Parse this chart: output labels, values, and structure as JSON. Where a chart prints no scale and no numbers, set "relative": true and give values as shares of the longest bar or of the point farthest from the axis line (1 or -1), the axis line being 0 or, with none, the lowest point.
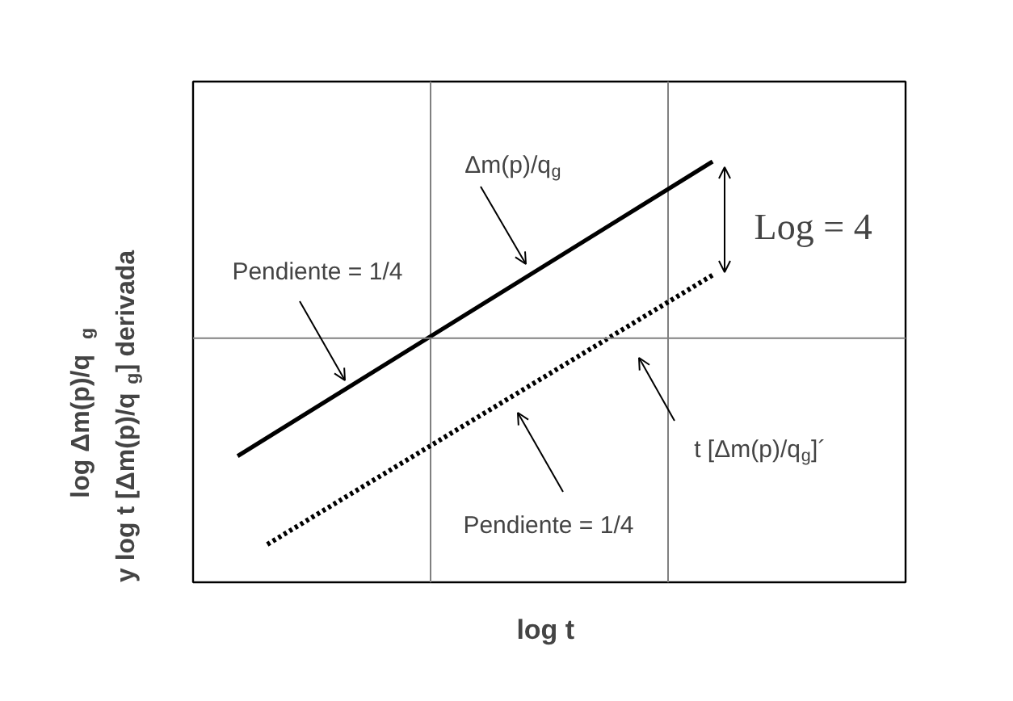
{
  "chart_data": {
    "type": "line",
    "relative": true,
    "xlabel": "log  t",
    "ylabel": "log  Δm(p)/q$_{g}$\ny log t [Δm(p)/q$_{g}$] derivada",
    "categories": [
      null,
      null,
      null,
      null,
      null,
      null,
      null,
      null,
      null,
      null,
      null,
      null,
      null,
      null,
      null,
      null,
      null,
      null,
      null,
      null,
      null,
      null,
      null,
      null
    ],
    "grid": "x",
    "series": [
      {
        "values": [
          null,
          0.3,
          null,
          null,
          null,
          null,
          null,
          null,
          null,
          null,
          null,
          null,
          null,
          null,
          null,
          null,
          null,
          1.0,
          null,
          null,
          null,
          null,
          null,
          null
        ],
        "color": "#000000",
        "line_style": "solid"
      },
      {
        "values": [
          null,
          null,
          0.09,
          null,
          null,
          null,
          null,
          null,
          null,
          null,
          null,
          null,
          null,
          null,
          null,
          null,
          null,
          0.73,
          null,
          null,
          null,
          null,
          null,
          null
        ],
        "color": "#000000",
        "line_style": "dotted"
      }
    ],
    "ref_lines": [
      {
        "axis": "y",
        "value": 0.58,
        "color": "#808080"
      }
    ],
    "annotations": [
      "Δm(p)/q$_{g}$",
      "Pendiente = 1/4",
      "Log = 4",
      "t [Δm(p)/q$_{g}$]´",
      "Pendiente = 1/4"
    ]
  }
}
